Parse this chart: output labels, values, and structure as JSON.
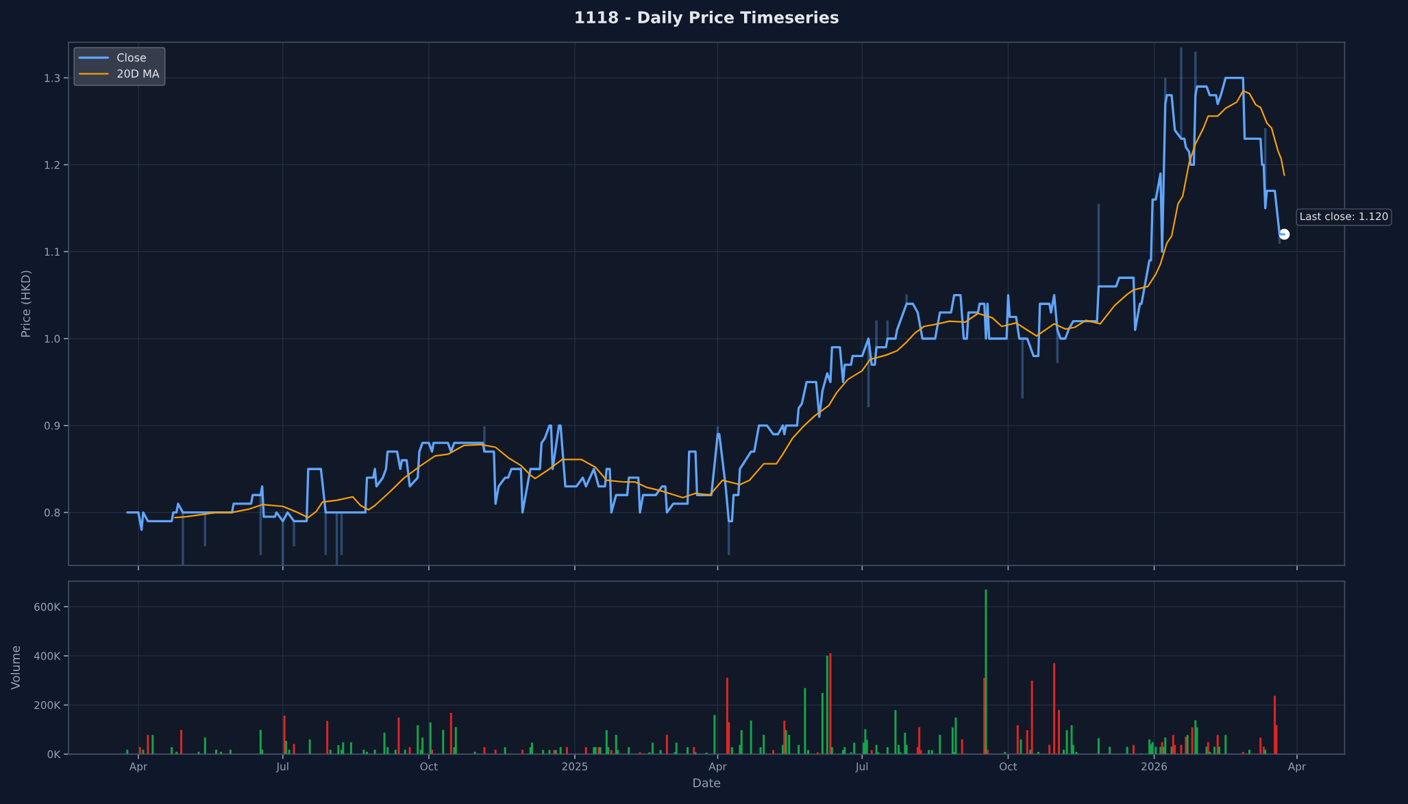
{
  "chart_data": [
    {
      "type": "line",
      "title": "1118 - Daily Price Timeseries",
      "ylabel": "Price (HKD)",
      "xlim": [
        "2024-02-17",
        "2026-05-01"
      ],
      "ylim": [
        0.739,
        1.341
      ],
      "xticks": [
        {
          "value": "2024-04-01",
          "label": null
        },
        {
          "value": "2024-07-01",
          "label": null
        },
        {
          "value": "2024-10-01",
          "label": null
        },
        {
          "value": "2025-01-01",
          "label": null
        },
        {
          "value": "2025-04-01",
          "label": null
        },
        {
          "value": "2025-07-01",
          "label": null
        },
        {
          "value": "2025-10-01",
          "label": null
        },
        {
          "value": "2026-01-01",
          "label": null
        },
        {
          "value": "2026-04-01",
          "label": null
        }
      ],
      "yticks": [
        0.8,
        0.9,
        {
          "value": 1.0,
          "label": "1.0"
        },
        1.1,
        1.2,
        1.3
      ],
      "tick_labels": "y",
      "grid": true,
      "legend": "top left",
      "annotations": [
        {
          "text": "Last close: 1.120",
          "x": "2026-03-24",
          "y": 1.12
        }
      ],
      "series": [
        {
          "name": "Close",
          "color": "#60a5fa",
          "x": [
            "2024-03-25",
            "2024-04-01",
            "2024-04-03",
            "2024-04-04",
            "2024-04-07",
            "2024-04-22",
            "2024-04-23",
            "2024-04-25",
            "2024-04-26",
            "2024-04-29",
            "2024-05-13",
            "2024-05-30",
            "2024-05-31",
            "2024-06-11",
            "2024-06-12",
            "2024-06-17",
            "2024-06-18",
            "2024-06-19",
            "2024-06-26",
            "2024-06-27",
            "2024-07-01",
            "2024-07-04",
            "2024-07-08",
            "2024-07-16",
            "2024-07-17",
            "2024-07-25",
            "2024-07-28",
            "2024-08-04",
            "2024-08-07",
            "2024-08-22",
            "2024-08-23",
            "2024-08-27",
            "2024-08-28",
            "2024-08-29",
            "2024-09-02",
            "2024-09-04",
            "2024-09-05",
            "2024-09-11",
            "2024-09-13",
            "2024-09-14",
            "2024-09-17",
            "2024-09-19",
            "2024-09-24",
            "2024-09-25",
            "2024-09-27",
            "2024-10-01",
            "2024-10-03",
            "2024-10-04",
            "2024-10-13",
            "2024-10-15",
            "2024-10-17",
            "2024-11-04",
            "2024-11-05",
            "2024-11-11",
            "2024-11-12",
            "2024-11-14",
            "2024-11-18",
            "2024-11-20",
            "2024-11-22",
            "2024-11-28",
            "2024-11-29",
            "2024-12-02",
            "2024-12-04",
            "2024-12-10",
            "2024-12-11",
            "2024-12-13",
            "2024-12-16",
            "2024-12-17",
            "2024-12-18",
            "2024-12-22",
            "2024-12-23",
            "2024-12-26",
            "2025-01-02",
            "2025-01-06",
            "2025-01-08",
            "2025-01-13",
            "2025-01-16",
            "2025-01-20",
            "2025-01-21",
            "2025-01-23",
            "2025-01-24",
            "2025-01-27",
            "2025-02-03",
            "2025-02-04",
            "2025-02-10",
            "2025-02-11",
            "2025-02-13",
            "2025-02-21",
            "2025-02-25",
            "2025-02-27",
            "2025-02-28",
            "2025-03-04",
            "2025-03-13",
            "2025-03-14",
            "2025-03-18",
            "2025-03-19",
            "2025-03-28",
            "2025-04-01",
            "2025-04-02",
            "2025-04-06",
            "2025-04-08",
            "2025-04-10",
            "2025-04-11",
            "2025-04-14",
            "2025-04-15",
            "2025-04-22",
            "2025-04-24",
            "2025-04-27",
            "2025-05-02",
            "2025-05-06",
            "2025-05-09",
            "2025-05-12",
            "2025-05-13",
            "2025-05-14",
            "2025-05-21",
            "2025-05-22",
            "2025-05-24",
            "2025-05-27",
            "2025-06-02",
            "2025-06-04",
            "2025-06-06",
            "2025-06-09",
            "2025-06-11",
            "2025-06-12",
            "2025-06-17",
            "2025-06-19",
            "2025-06-20",
            "2025-06-24",
            "2025-06-25",
            "2025-07-01",
            "2025-07-03",
            "2025-07-05",
            "2025-07-07",
            "2025-07-09",
            "2025-07-10",
            "2025-07-16",
            "2025-07-17",
            "2025-07-22",
            "2025-07-23",
            "2025-07-25",
            "2025-07-29",
            "2025-08-02",
            "2025-08-05",
            "2025-08-08",
            "2025-08-16",
            "2025-08-19",
            "2025-08-26",
            "2025-08-28",
            "2025-09-01",
            "2025-09-03",
            "2025-09-05",
            "2025-09-06",
            "2025-09-12",
            "2025-09-13",
            "2025-09-16",
            "2025-09-17",
            "2025-09-18",
            "2025-09-19",
            "2025-09-30",
            "2025-10-01",
            "2025-10-02",
            "2025-10-06",
            "2025-10-08",
            "2025-10-10",
            "2025-10-13",
            "2025-10-15",
            "2025-10-17",
            "2025-10-20",
            "2025-10-21",
            "2025-10-27",
            "2025-10-28",
            "2025-10-30",
            "2025-11-01",
            "2025-11-03",
            "2025-11-06",
            "2025-11-08",
            "2025-11-11",
            "2025-11-26",
            "2025-11-27",
            "2025-12-08",
            "2025-12-10",
            "2025-12-19",
            "2025-12-20",
            "2025-12-23",
            "2025-12-24",
            "2025-12-29",
            "2025-12-30",
            "2025-12-31",
            "2026-01-02",
            "2026-01-05",
            "2026-01-06",
            "2026-01-08",
            "2026-01-09",
            "2026-01-12",
            "2026-01-14",
            "2026-01-16",
            "2026-01-18",
            "2026-01-20",
            "2026-01-21",
            "2026-01-23",
            "2026-01-24",
            "2026-01-26",
            "2026-01-27",
            "2026-01-28",
            "2026-02-03",
            "2026-02-05",
            "2026-02-09",
            "2026-02-10",
            "2026-02-12",
            "2026-02-15",
            "2026-02-26",
            "2026-02-27",
            "2026-03-09",
            "2026-03-10",
            "2026-03-11",
            "2026-03-12",
            "2026-03-13",
            "2026-03-18",
            "2026-03-21",
            "2026-03-24"
          ],
          "values": [
            0.8,
            0.8,
            0.78,
            0.8,
            0.79,
            0.79,
            0.8,
            0.8,
            0.81,
            0.8,
            0.8,
            0.8,
            0.81,
            0.81,
            0.82,
            0.82,
            0.83,
            0.795,
            0.795,
            0.8,
            0.79,
            0.8,
            0.79,
            0.79,
            0.85,
            0.85,
            0.8,
            0.8,
            0.8,
            0.8,
            0.84,
            0.84,
            0.85,
            0.83,
            0.84,
            0.85,
            0.87,
            0.87,
            0.85,
            0.86,
            0.86,
            0.83,
            0.84,
            0.87,
            0.88,
            0.88,
            0.87,
            0.88,
            0.88,
            0.87,
            0.88,
            0.88,
            0.87,
            0.87,
            0.81,
            0.83,
            0.84,
            0.84,
            0.85,
            0.85,
            0.8,
            0.83,
            0.85,
            0.85,
            0.88,
            0.885,
            0.9,
            0.9,
            0.85,
            0.9,
            0.9,
            0.83,
            0.83,
            0.84,
            0.83,
            0.85,
            0.83,
            0.83,
            0.85,
            0.85,
            0.8,
            0.82,
            0.82,
            0.84,
            0.84,
            0.8,
            0.82,
            0.82,
            0.83,
            0.83,
            0.8,
            0.81,
            0.81,
            0.87,
            0.87,
            0.82,
            0.82,
            0.89,
            0.89,
            0.83,
            0.79,
            0.79,
            0.82,
            0.82,
            0.85,
            0.87,
            0.87,
            0.9,
            0.9,
            0.89,
            0.89,
            0.9,
            0.89,
            0.9,
            0.9,
            0.92,
            0.925,
            0.95,
            0.95,
            0.91,
            0.94,
            0.96,
            0.95,
            0.99,
            0.99,
            0.95,
            0.97,
            0.97,
            0.98,
            0.98,
            0.99,
            1.0,
            0.97,
            0.97,
            0.99,
            0.99,
            1.0,
            1.0,
            1.01,
            1.02,
            1.04,
            1.04,
            1.03,
            1.0,
            1.0,
            1.03,
            1.03,
            1.05,
            1.05,
            1.0,
            1.0,
            1.03,
            1.03,
            1.04,
            1.04,
            1.0,
            1.04,
            1.0,
            1.0,
            1.05,
            1.025,
            1.025,
            1.0,
            1.0,
            1.0,
            0.99,
            0.98,
            0.98,
            1.04,
            1.04,
            1.03,
            1.05,
            1.01,
            1.0,
            1.0,
            1.01,
            1.02,
            1.02,
            1.06,
            1.06,
            1.07,
            1.07,
            1.01,
            1.04,
            1.04,
            1.09,
            1.09,
            1.16,
            1.16,
            1.19,
            1.1,
            1.27,
            1.28,
            1.28,
            1.24,
            1.235,
            1.23,
            1.23,
            1.22,
            1.215,
            1.2,
            1.2,
            1.28,
            1.29,
            1.29,
            1.28,
            1.28,
            1.27,
            1.28,
            1.3,
            1.3,
            1.23,
            1.23,
            1.2,
            1.2,
            1.15,
            1.17,
            1.17,
            1.12,
            1.12
          ],
          "errors": [
            null,
            null,
            null,
            null,
            null,
            null,
            null,
            null,
            null,
            [
              0.739,
              0.8
            ],
            [
              0.761,
              0.8
            ],
            null,
            null,
            null,
            null,
            [
              0.751,
              0.82
            ],
            null,
            null,
            null,
            null,
            [
              0.739,
              0.79
            ],
            null,
            [
              0.761,
              0.79
            ],
            null,
            null,
            null,
            [
              0.751,
              0.8
            ],
            [
              0.739,
              0.8
            ],
            [
              0.751,
              0.8
            ],
            null,
            null,
            null,
            null,
            null,
            null,
            null,
            null,
            null,
            null,
            null,
            null,
            null,
            null,
            null,
            null,
            null,
            null,
            null,
            null,
            null,
            null,
            null,
            [
              0.87,
              0.899
            ],
            null,
            null,
            null,
            null,
            null,
            null,
            null,
            null,
            null,
            null,
            null,
            null,
            null,
            null,
            null,
            null,
            null,
            null,
            null,
            null,
            null,
            null,
            null,
            null,
            null,
            null,
            null,
            null,
            null,
            null,
            null,
            null,
            null,
            null,
            null,
            null,
            null,
            null,
            null,
            null,
            null,
            null,
            null,
            null,
            [
              0.89,
              0.899
            ],
            null,
            null,
            [
              0.751,
              0.79
            ],
            null,
            null,
            null,
            null,
            null,
            null,
            null,
            null,
            null,
            null,
            null,
            null,
            null,
            null,
            null,
            null,
            null,
            null,
            null,
            null,
            null,
            null,
            null,
            null,
            null,
            null,
            null,
            null,
            null,
            null,
            [
              0.921,
              1.0
            ],
            null,
            null,
            [
              0.99,
              1.021
            ],
            null,
            [
              1.0,
              1.021
            ],
            null,
            null,
            null,
            [
              1.04,
              1.051
            ],
            null,
            null,
            null,
            null,
            null,
            null,
            null,
            null,
            null,
            null,
            null,
            null,
            null,
            null,
            null,
            null,
            null,
            null,
            null,
            null,
            null,
            null,
            [
              0.931,
              1.0
            ],
            null,
            null,
            null,
            null,
            null,
            null,
            null,
            null,
            [
              0.972,
              1.01
            ],
            null,
            null,
            null,
            null,
            null,
            [
              1.06,
              1.155
            ],
            null,
            null,
            null,
            null,
            null,
            null,
            null,
            null,
            null,
            null,
            null,
            null,
            [
              1.27,
              1.3
            ],
            null,
            null,
            null,
            null,
            [
              1.23,
              1.335
            ],
            null,
            null,
            null,
            null,
            null,
            [
              1.28,
              1.33
            ],
            null,
            null,
            null,
            null,
            null,
            null,
            null,
            null,
            null,
            null,
            null,
            null,
            [
              1.15,
              1.242
            ],
            null,
            null,
            [
              1.109,
              1.12
            ],
            null
          ]
        },
        {
          "name": "20D MA",
          "color": "#f59e0b",
          "x": [
            "2024-04-24",
            "2024-05-01",
            "2024-05-09",
            "2024-05-20",
            "2024-05-30",
            "2024-06-10",
            "2024-06-18",
            "2024-07-01",
            "2024-07-09",
            "2024-07-17",
            "2024-07-22",
            "2024-07-26",
            "2024-08-04",
            "2024-08-14",
            "2024-08-19",
            "2024-08-24",
            "2024-08-28",
            "2024-09-06",
            "2024-09-15",
            "2024-09-26",
            "2024-10-05",
            "2024-10-13",
            "2024-10-23",
            "2024-11-03",
            "2024-11-12",
            "2024-11-20",
            "2024-11-28",
            "2024-12-04",
            "2024-12-07",
            "2024-12-16",
            "2024-12-24",
            "2025-01-05",
            "2025-01-14",
            "2025-01-21",
            "2025-02-01",
            "2025-02-08",
            "2025-02-15",
            "2025-02-24",
            "2025-03-10",
            "2025-03-18",
            "2025-03-27",
            "2025-04-04",
            "2025-04-15",
            "2025-04-21",
            "2025-04-30",
            "2025-05-08",
            "2025-05-12",
            "2025-05-18",
            "2025-05-25",
            "2025-06-01",
            "2025-06-10",
            "2025-06-15",
            "2025-06-22",
            "2025-07-01",
            "2025-07-06",
            "2025-07-16",
            "2025-07-23",
            "2025-07-29",
            "2025-08-03",
            "2025-08-09",
            "2025-08-18",
            "2025-08-25",
            "2025-09-04",
            "2025-09-12",
            "2025-09-21",
            "2025-09-27",
            "2025-10-06",
            "2025-10-12",
            "2025-10-19",
            "2025-10-30",
            "2025-11-06",
            "2025-11-12",
            "2025-11-19",
            "2025-11-28",
            "2025-12-07",
            "2025-12-15",
            "2025-12-19",
            "2025-12-28",
            "2026-01-02",
            "2026-01-05",
            "2026-01-09",
            "2026-01-12",
            "2026-01-16",
            "2026-01-19",
            "2026-01-23",
            "2026-01-27",
            "2026-02-01",
            "2026-02-04",
            "2026-02-10",
            "2026-02-15",
            "2026-02-22",
            "2026-02-26",
            "2026-03-02",
            "2026-03-06",
            "2026-03-09",
            "2026-03-13",
            "2026-03-16",
            "2026-03-20",
            "2026-03-22",
            "2026-03-24"
          ],
          "values": [
            0.794,
            0.795,
            0.797,
            0.8,
            0.8,
            0.804,
            0.809,
            0.807,
            0.801,
            0.794,
            0.801,
            0.812,
            0.814,
            0.818,
            0.808,
            0.803,
            0.808,
            0.823,
            0.839,
            0.854,
            0.865,
            0.867,
            0.877,
            0.878,
            0.875,
            0.863,
            0.854,
            0.843,
            0.839,
            0.85,
            0.861,
            0.861,
            0.852,
            0.837,
            0.835,
            0.835,
            0.829,
            0.825,
            0.817,
            0.822,
            0.82,
            0.837,
            0.832,
            0.837,
            0.856,
            0.856,
            0.867,
            0.885,
            0.899,
            0.911,
            0.923,
            0.938,
            0.953,
            0.963,
            0.976,
            0.981,
            0.986,
            0.996,
            1.006,
            1.014,
            1.017,
            1.02,
            1.019,
            1.029,
            1.024,
            1.014,
            1.018,
            1.011,
            1.003,
            1.017,
            1.011,
            1.013,
            1.021,
            1.017,
            1.038,
            1.051,
            1.056,
            1.06,
            1.074,
            1.086,
            1.11,
            1.118,
            1.155,
            1.164,
            1.202,
            1.224,
            1.242,
            1.256,
            1.256,
            1.265,
            1.272,
            1.285,
            1.282,
            1.269,
            1.266,
            1.248,
            1.242,
            1.216,
            1.207,
            1.188
          ]
        },
        {
          "type": "scatter",
          "color": "#ffffff",
          "marker": "circle",
          "x": [
            "2026-03-24"
          ],
          "values": [
            1.12
          ]
        }
      ]
    },
    {
      "type": "bar",
      "xlabel": "Date",
      "ylabel": "Volume",
      "xlim": [
        "2024-02-17",
        "2026-05-01"
      ],
      "ylim": [
        0,
        704000
      ],
      "xticks": [
        {
          "value": "2024-04-01",
          "label": "Apr"
        },
        {
          "value": "2024-07-01",
          "label": "Jul"
        },
        {
          "value": "2024-10-01",
          "label": "Oct"
        },
        {
          "value": "2025-01-01",
          "label": "2025"
        },
        {
          "value": "2025-04-01",
          "label": "Apr"
        },
        {
          "value": "2025-07-01",
          "label": "Jul"
        },
        {
          "value": "2025-10-01",
          "label": "Oct"
        },
        {
          "value": "2026-01-01",
          "label": "2026"
        },
        {
          "value": "2026-04-01",
          "label": "Apr"
        }
      ],
      "yticks": [
        {
          "value": 0,
          "label": "0K"
        },
        {
          "value": 200000,
          "label": "200K"
        },
        {
          "value": 400000,
          "label": "400K"
        },
        {
          "value": 600000,
          "label": "600K"
        }
      ],
      "grid": true,
      "x": [
        "2024-03-25",
        "2024-04-02",
        "2024-04-04",
        "2024-04-07",
        "2024-04-10",
        "2024-04-22",
        "2024-04-25",
        "2024-04-28",
        "2024-05-09",
        "2024-05-13",
        "2024-05-20",
        "2024-05-23",
        "2024-05-29",
        "2024-06-17",
        "2024-06-18",
        "2024-07-02",
        "2024-07-03",
        "2024-07-05",
        "2024-07-08",
        "2024-07-18",
        "2024-07-29",
        "2024-07-31",
        "2024-08-05",
        "2024-08-07",
        "2024-08-08",
        "2024-08-13",
        "2024-08-21",
        "2024-08-23",
        "2024-08-28",
        "2024-09-03",
        "2024-09-05",
        "2024-09-10",
        "2024-09-12",
        "2024-09-16",
        "2024-09-19",
        "2024-09-24",
        "2024-09-26",
        "2024-09-27",
        "2024-10-02",
        "2024-10-03",
        "2024-10-10",
        "2024-10-15",
        "2024-10-17",
        "2024-10-18",
        "2024-10-30",
        "2024-11-05",
        "2024-11-12",
        "2024-11-18",
        "2024-11-29",
        "2024-12-04",
        "2024-12-05",
        "2024-12-12",
        "2024-12-16",
        "2024-12-19",
        "2024-12-20",
        "2024-12-23",
        "2024-12-27",
        "2025-01-08",
        "2025-01-13",
        "2025-01-14",
        "2025-01-16",
        "2025-01-17",
        "2025-01-21",
        "2025-01-22",
        "2025-01-24",
        "2025-01-27",
        "2025-01-28",
        "2025-02-04",
        "2025-02-11",
        "2025-02-17",
        "2025-02-19",
        "2025-02-24",
        "2025-02-28",
        "2025-03-05",
        "2025-03-06",
        "2025-03-13",
        "2025-03-17",
        "2025-03-18",
        "2025-03-25",
        "2025-03-30",
        "2025-04-07",
        "2025-04-08",
        "2025-04-10",
        "2025-04-15",
        "2025-04-16",
        "2025-04-22",
        "2025-04-28",
        "2025-04-30",
        "2025-05-06",
        "2025-05-12",
        "2025-05-13",
        "2025-05-14",
        "2025-05-16",
        "2025-05-22",
        "2025-05-26",
        "2025-05-28",
        "2025-06-03",
        "2025-06-06",
        "2025-06-09",
        "2025-06-11",
        "2025-06-12",
        "2025-06-19",
        "2025-06-20",
        "2025-06-24",
        "2025-06-26",
        "2025-07-02",
        "2025-07-03",
        "2025-07-04",
        "2025-07-07",
        "2025-07-10",
        "2025-07-11",
        "2025-07-17",
        "2025-07-22",
        "2025-07-24",
        "2025-07-25",
        "2025-07-28",
        "2025-07-29",
        "2025-08-05",
        "2025-08-06",
        "2025-08-07",
        "2025-08-12",
        "2025-08-14",
        "2025-08-19",
        "2025-08-27",
        "2025-08-28",
        "2025-08-29",
        "2025-09-02",
        "2025-09-16",
        "2025-09-17",
        "2025-09-18",
        "2025-09-29",
        "2025-10-07",
        "2025-10-09",
        "2025-10-13",
        "2025-10-15",
        "2025-10-16",
        "2025-10-20",
        "2025-10-27",
        "2025-10-30",
        "2025-11-02",
        "2025-11-05",
        "2025-11-07",
        "2025-11-10",
        "2025-11-11",
        "2025-11-13",
        "2025-11-27",
        "2025-12-04",
        "2025-12-15",
        "2025-12-19",
        "2025-12-24",
        "2025-12-29",
        "2025-12-30",
        "2025-12-31",
        "2026-01-02",
        "2026-01-05",
        "2026-01-06",
        "2026-01-07",
        "2026-01-08",
        "2026-01-12",
        "2026-01-13",
        "2026-01-14",
        "2026-01-18",
        "2026-01-21",
        "2026-01-22",
        "2026-01-25",
        "2026-01-27",
        "2026-01-28",
        "2026-02-03",
        "2026-02-04",
        "2026-02-05",
        "2026-02-08",
        "2026-02-10",
        "2026-02-11",
        "2026-02-15",
        "2026-02-26",
        "2026-03-02",
        "2026-03-09",
        "2026-03-11",
        "2026-03-12",
        "2026-03-18",
        "2026-03-19"
      ],
      "values": [
        18000,
        29000,
        18000,
        78000,
        78000,
        29000,
        10000,
        99000,
        10000,
        68000,
        18000,
        10000,
        18000,
        99000,
        18000,
        157000,
        54000,
        18000,
        42000,
        60000,
        135000,
        18000,
        37000,
        18000,
        48000,
        48000,
        18000,
        10000,
        18000,
        88000,
        29000,
        18000,
        149000,
        18000,
        29000,
        118000,
        18000,
        68000,
        129000,
        18000,
        99000,
        168000,
        29000,
        110000,
        10000,
        29000,
        18000,
        29000,
        18000,
        29000,
        47000,
        17000,
        17000,
        17000,
        17000,
        29000,
        29000,
        29000,
        29000,
        29000,
        29000,
        29000,
        98000,
        29000,
        17000,
        79000,
        17000,
        29000,
        8000,
        8000,
        47000,
        17000,
        79000,
        8000,
        47000,
        29000,
        29000,
        8000,
        6000,
        160000,
        311000,
        130000,
        29000,
        38000,
        98000,
        137000,
        29000,
        79000,
        17000,
        38000,
        137000,
        98000,
        79000,
        38000,
        269000,
        17000,
        8000,
        249000,
        400000,
        411000,
        29000,
        17000,
        29000,
        8000,
        47000,
        47000,
        102000,
        59000,
        17000,
        38000,
        8000,
        29000,
        179000,
        38000,
        8000,
        87000,
        38000,
        29000,
        110000,
        17000,
        17000,
        17000,
        79000,
        109000,
        9000,
        149000,
        60000,
        310000,
        670000,
        18000,
        9000,
        118000,
        60000,
        98000,
        18000,
        299000,
        9000,
        38000,
        370000,
        180000,
        18000,
        98000,
        118000,
        38000,
        9000,
        65000,
        30000,
        30000,
        38000,
        3000,
        60000,
        41000,
        49000,
        30000,
        30000,
        49000,
        30000,
        68000,
        30000,
        78000,
        38000,
        38000,
        71000,
        78000,
        109000,
        138000,
        109000,
        30000,
        49000,
        9000,
        30000,
        78000,
        30000,
        78000,
        9000,
        18000,
        67000,
        30000,
        18000,
        237000,
        118000
      ],
      "colors": [
        "#16a34a",
        "#dc2626",
        "#16a34a",
        "#dc2626",
        "#16a34a",
        "#16a34a",
        "#16a34a",
        "#dc2626",
        "#16a34a",
        "#16a34a",
        "#16a34a",
        "#16a34a",
        "#16a34a",
        "#16a34a",
        "#16a34a",
        "#dc2626",
        "#16a34a",
        "#16a34a",
        "#dc2626",
        "#16a34a",
        "#dc2626",
        "#16a34a",
        "#16a34a",
        "#16a34a",
        "#16a34a",
        "#16a34a",
        "#16a34a",
        "#16a34a",
        "#16a34a",
        "#16a34a",
        "#16a34a",
        "#16a34a",
        "#dc2626",
        "#16a34a",
        "#dc2626",
        "#16a34a",
        "#16a34a",
        "#16a34a",
        "#16a34a",
        "#dc2626",
        "#16a34a",
        "#dc2626",
        "#16a34a",
        "#16a34a",
        "#16a34a",
        "#dc2626",
        "#dc2626",
        "#16a34a",
        "#dc2626",
        "#16a34a",
        "#16a34a",
        "#16a34a",
        "#16a34a",
        "#dc2626",
        "#16a34a",
        "#16a34a",
        "#dc2626",
        "#dc2626",
        "#16a34a",
        "#16a34a",
        "#dc2626",
        "#16a34a",
        "#16a34a",
        "#16a34a",
        "#dc2626",
        "#16a34a",
        "#16a34a",
        "#16a34a",
        "#dc2626",
        "#16a34a",
        "#16a34a",
        "#16a34a",
        "#dc2626",
        "#16a34a",
        "#16a34a",
        "#16a34a",
        "#dc2626",
        "#16a34a",
        "#16a34a",
        "#16a34a",
        "#dc2626",
        "#dc2626",
        "#16a34a",
        "#16a34a",
        "#16a34a",
        "#16a34a",
        "#16a34a",
        "#16a34a",
        "#dc2626",
        "#16a34a",
        "#dc2626",
        "#16a34a",
        "#16a34a",
        "#16a34a",
        "#16a34a",
        "#16a34a",
        "#dc2626",
        "#16a34a",
        "#16a34a",
        "#dc2626",
        "#16a34a",
        "#16a34a",
        "#16a34a",
        "#16a34a",
        "#16a34a",
        "#16a34a",
        "#16a34a",
        "#16a34a",
        "#dc2626",
        "#16a34a",
        "#16a34a",
        "#16a34a",
        "#16a34a",
        "#16a34a",
        "#16a34a",
        "#16a34a",
        "#16a34a",
        "#dc2626",
        "#dc2626",
        "#dc2626",
        "#16a34a",
        "#16a34a",
        "#16a34a",
        "#16a34a",
        "#16a34a",
        "#16a34a",
        "#dc2626",
        "#dc2626",
        "#16a34a",
        "#dc2626",
        "#16a34a",
        "#dc2626",
        "#16a34a",
        "#dc2626",
        "#16a34a",
        "#dc2626",
        "#16a34a",
        "#dc2626",
        "#dc2626",
        "#dc2626",
        "#16a34a",
        "#16a34a",
        "#16a34a",
        "#16a34a",
        "#16a34a",
        "#16a34a",
        "#16a34a",
        "#16a34a",
        "#dc2626",
        "#16a34a",
        "#16a34a",
        "#16a34a",
        "#16a34a",
        "#16a34a",
        "#16a34a",
        "#dc2626",
        "#16a34a",
        "#16a34a",
        "#16a34a",
        "#dc2626",
        "#dc2626",
        "#dc2626",
        "#dc2626",
        "#16a34a",
        "#dc2626",
        "#16a34a",
        "#16a34a",
        "#16a34a",
        "#dc2626",
        "#16a34a",
        "#16a34a",
        "#dc2626",
        "#16a34a",
        "#16a34a",
        "#dc2626",
        "#16a34a",
        "#dc2626",
        "#dc2626",
        "#16a34a",
        "#dc2626",
        "#dc2626"
      ]
    }
  ]
}
